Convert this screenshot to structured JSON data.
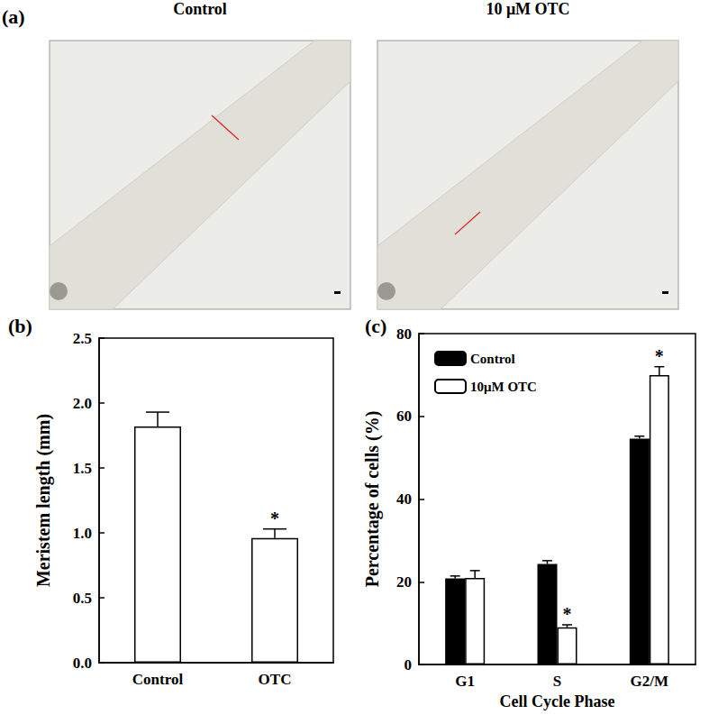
{
  "panel_a": {
    "label": "(a)",
    "images": [
      {
        "title": "Control"
      },
      {
        "title": "10 μM OTC"
      }
    ]
  },
  "chart_data": [
    {
      "type": "bar",
      "panel_label": "(b)",
      "categories": [
        "Control",
        "OTC"
      ],
      "values": [
        1.82,
        0.96
      ],
      "errors": [
        0.11,
        0.07
      ],
      "significance": [
        null,
        "*"
      ],
      "color": "#ffffff",
      "ylabel": "Meristem length (mm)",
      "ylim": [
        0,
        2.5
      ],
      "yticks": [
        {
          "value": 0,
          "label": "0.0"
        },
        0.5,
        {
          "value": 1,
          "label": "1.0"
        },
        1.5,
        {
          "value": 2,
          "label": "2.0"
        },
        2.5
      ],
      "grid": false
    },
    {
      "type": "bar",
      "panel_label": "(c)",
      "categories": [
        "G1",
        "S",
        "G2/M"
      ],
      "series": [
        {
          "name": "Control",
          "color": "#000000",
          "values": [
            20.8,
            24.3,
            54.6
          ],
          "errors": [
            0.6,
            0.8,
            0.6
          ],
          "significance": [
            null,
            null,
            null
          ]
        },
        {
          "name": "10μM OTC",
          "color": "#ffffff",
          "values": [
            20.9,
            9.0,
            70.0
          ],
          "errors": [
            1.8,
            0.6,
            2.0
          ],
          "significance": [
            null,
            "*",
            "*"
          ]
        }
      ],
      "xlabel": "Cell Cycle Phase",
      "ylabel": "Percentage of cells (%)",
      "ylim": [
        0,
        80
      ],
      "yticks": [
        0,
        20,
        40,
        60,
        80
      ],
      "legend": "upper left",
      "grid": false
    }
  ]
}
